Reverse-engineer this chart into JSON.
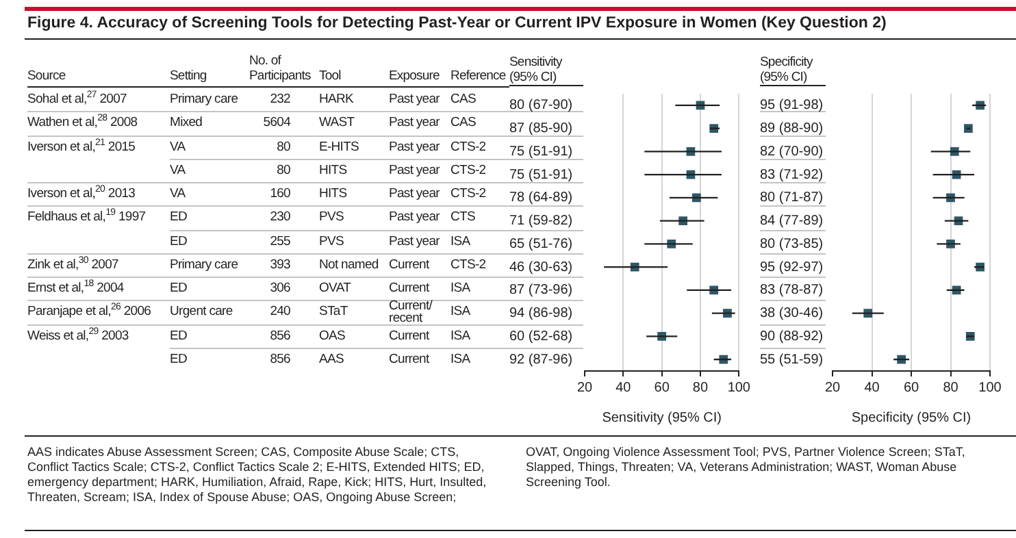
{
  "chart_data": [
    {
      "type": "other",
      "title": "Figure 4. Accuracy of Screening Tools for Detecting Past-Year or Current IPV Exposure in Women (Key Question 2)",
      "categories": [
        "Source",
        "Setting",
        "No. of Participants",
        "Tool",
        "Exposure",
        "Reference"
      ],
      "cell_labels": [
        [
          "Sohal et al,$^{27}$ 2007",
          "Primary care",
          "232",
          "HARK",
          "Past year",
          "CAS"
        ],
        [
          "Wathen et al,$^{28}$ 2008",
          "Mixed",
          "5604",
          "WAST",
          "Past year",
          "CAS"
        ],
        [
          "Iverson et al,$^{21}$ 2015",
          "VA",
          "80",
          "E-HITS",
          "Past year",
          "CTS-2"
        ],
        [
          null,
          "VA",
          "80",
          "HITS",
          "Past year",
          "CTS-2"
        ],
        [
          "Iverson et al,$^{20}$ 2013",
          "VA",
          "160",
          "HITS",
          "Past year",
          "CTS-2"
        ],
        [
          "Feldhaus et al,$^{19}$ 1997",
          "ED",
          "230",
          "PVS",
          "Past year",
          "CTS"
        ],
        [
          null,
          "ED",
          "255",
          "PVS",
          "Past year",
          "ISA"
        ],
        [
          "Zink et al,$^{30}$ 2007",
          "Primary care",
          "393",
          "Not named",
          "Current",
          "CTS-2"
        ],
        [
          "Ernst et al,$^{18}$ 2004",
          "ED",
          "306",
          "OVAT",
          "Current",
          "ISA"
        ],
        [
          "Paranjape et al,$^{26}$ 2006",
          "Urgent care",
          "240",
          "STaT",
          "Current/ recent",
          "ISA"
        ],
        [
          "Weiss et al,$^{29}$ 2003",
          "ED",
          "856",
          "OAS",
          "Current",
          "ISA"
        ],
        [
          null,
          "ED",
          "856",
          "AAS",
          "Current",
          "ISA"
        ]
      ],
      "annotations": [
        "AAS indicates Abuse Assessment Screen; CAS, Composite Abuse Scale; CTS, Conflict Tactics Scale; CTS-2, Conflict Tactics Scale 2; E-HITS, Extended HITS; ED, emergency department; HARK, Humiliation, Afraid, Rape, Kick; HITS, Hurt, Insulted, Threaten, Scream; ISA, Index of Spouse Abuse; OAS, Ongoing Abuse Screen; OVAT, Ongoing Violence Assessment Tool; PVS, Partner Violence Screen; STaT, Slapped, Things, Threaten; VA, Veterans Administration; WAST, Woman Abuse Screening Tool."
      ]
    },
    {
      "type": "scatter",
      "orientation": "horizontal",
      "title": "Sensitivity (95% CI)",
      "xlabel": "Sensitivity (95% CI)",
      "categories": [
        null,
        null,
        null,
        null,
        null,
        null,
        null,
        null,
        null,
        null,
        null,
        null
      ],
      "values": [
        80,
        87,
        75,
        75,
        78,
        71,
        65,
        46,
        87,
        94,
        60,
        92
      ],
      "errors": [
        [
          67,
          90
        ],
        [
          85,
          90
        ],
        [
          51,
          91
        ],
        [
          51,
          91
        ],
        [
          64,
          89
        ],
        [
          59,
          82
        ],
        [
          51,
          76
        ],
        [
          30,
          63
        ],
        [
          73,
          96
        ],
        [
          86,
          98
        ],
        [
          52,
          68
        ],
        [
          87,
          96
        ]
      ],
      "value_labels": [
        "80 (67-90)",
        "87 (85-90)",
        "75 (51-91)",
        "75 (51-91)",
        "78 (64-89)",
        "71 (59-82)",
        "65 (51-76)",
        "46 (30-63)",
        "87 (73-96)",
        "94 (86-98)",
        "60 (52-68)",
        "92 (87-96)"
      ],
      "color": "#2d5766",
      "marker": "square",
      "xlim": [
        20,
        100
      ],
      "xticks": [
        20,
        40,
        60,
        80,
        100
      ],
      "grid": "x"
    },
    {
      "type": "scatter",
      "orientation": "horizontal",
      "title": "Specificity (95% CI)",
      "xlabel": "Specificity (95% CI)",
      "categories": [
        null,
        null,
        null,
        null,
        null,
        null,
        null,
        null,
        null,
        null,
        null,
        null
      ],
      "values": [
        95,
        89,
        82,
        83,
        80,
        84,
        80,
        95,
        83,
        38,
        90,
        55
      ],
      "errors": [
        [
          91,
          98
        ],
        [
          88,
          90
        ],
        [
          70,
          90
        ],
        [
          71,
          92
        ],
        [
          71,
          87
        ],
        [
          77,
          89
        ],
        [
          73,
          85
        ],
        [
          92,
          97
        ],
        [
          78,
          87
        ],
        [
          30,
          46
        ],
        [
          88,
          92
        ],
        [
          51,
          59
        ]
      ],
      "value_labels": [
        "95 (91-98)",
        "89 (88-90)",
        "82 (70-90)",
        "83 (71-92)",
        "80 (71-87)",
        "84 (77-89)",
        "80 (73-85)",
        "95 (92-97)",
        "83 (78-87)",
        "38 (30-46)",
        "90 (88-92)",
        "55 (51-59)"
      ],
      "color": "#2d5766",
      "marker": "square",
      "xlim": [
        20,
        100
      ],
      "xticks": [
        20,
        40,
        60,
        80,
        100
      ],
      "grid": "x"
    }
  ]
}
